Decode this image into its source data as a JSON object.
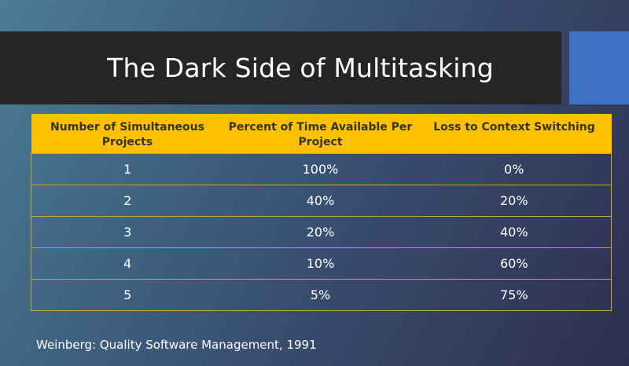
{
  "slide": {
    "title": "The Dark Side of Multitasking",
    "footnote": "Weinberg: Quality Software Management, 1991",
    "colors": {
      "title_bar": "#252525",
      "accent_block": "#3f72c6",
      "header_fill": "#ffc000",
      "row_border": "#c9a53a",
      "text": "#ffffff"
    }
  },
  "table": {
    "headers": [
      "Number of Simultaneous Projects",
      "Percent of Time Available Per Project",
      "Loss to Context Switching"
    ],
    "rows": [
      [
        "1",
        "100%",
        "0%"
      ],
      [
        "2",
        "40%",
        "20%"
      ],
      [
        "3",
        "20%",
        "40%"
      ],
      [
        "4",
        "10%",
        "60%"
      ],
      [
        "5",
        "5%",
        "75%"
      ]
    ]
  }
}
